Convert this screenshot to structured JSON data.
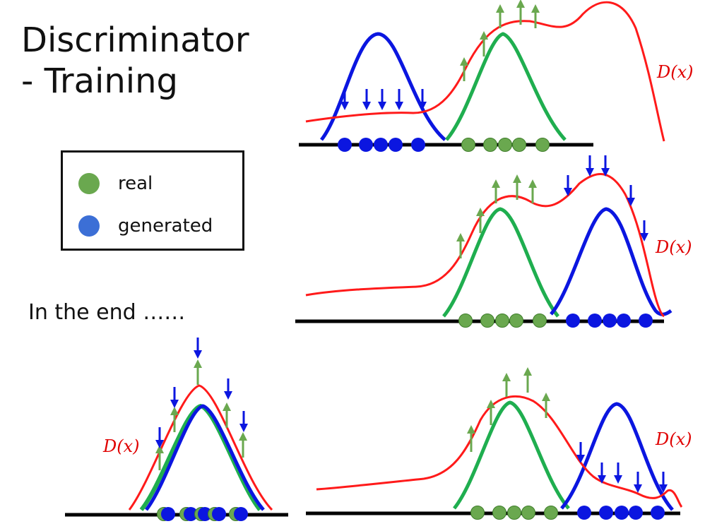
{
  "title": {
    "line1": "Discriminator",
    "line2": "- Training"
  },
  "legend": {
    "real_label": "real",
    "generated_label": "generated",
    "real_color": "#6aa84f",
    "generated_color": "#3c6fd6"
  },
  "end_text": "In the end ……",
  "d_label": "D(x)",
  "colors": {
    "discriminator": "#ff1a1a",
    "real": "#1fae4f",
    "generated": "#0b16e0",
    "axis": "#000000",
    "up_arrow": "#6aa84f",
    "down_arrow": "#0b16e0"
  }
}
